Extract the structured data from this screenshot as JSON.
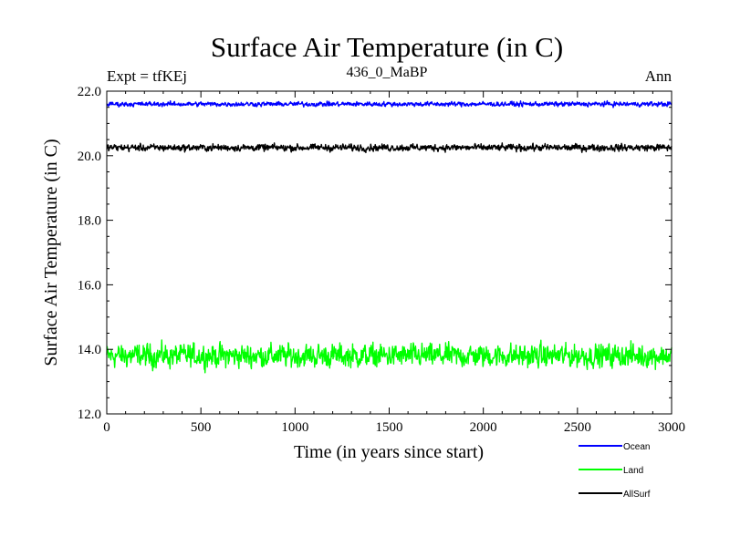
{
  "chart_data": {
    "type": "line",
    "title": "Surface Air Temperature (in C)",
    "subtitle": "436_0_MaBP",
    "left_label": "Expt = tfKEj",
    "right_label": "Ann",
    "xlabel": "Time (in years since start)",
    "ylabel": "Surface Air Temperature (in C)",
    "xlim": [
      0,
      3000
    ],
    "ylim": [
      12.0,
      22.0
    ],
    "x_ticks": [
      0,
      500,
      1000,
      1500,
      2000,
      2500,
      3000
    ],
    "x_tick_labels": [
      "0",
      "500",
      "1000",
      "1500",
      "2000",
      "2500",
      "3000"
    ],
    "y_ticks": [
      12.0,
      14.0,
      16.0,
      18.0,
      20.0,
      22.0
    ],
    "y_tick_labels": [
      "12.0",
      "14.0",
      "16.0",
      "18.0",
      "20.0",
      "22.0"
    ],
    "grid": false,
    "legend_position": "bottom-right",
    "series": [
      {
        "name": "Ocean",
        "color": "#0000ff",
        "mean": 21.6,
        "range": [
          21.45,
          21.75
        ]
      },
      {
        "name": "Land",
        "color": "#00ff00",
        "mean": 13.8,
        "range": [
          13.1,
          14.6
        ]
      },
      {
        "name": "AllSurf",
        "color": "#000000",
        "mean": 20.25,
        "range": [
          20.05,
          20.5
        ]
      }
    ]
  }
}
